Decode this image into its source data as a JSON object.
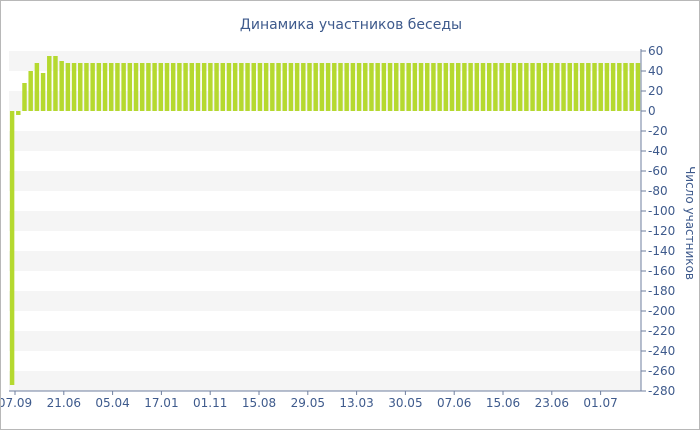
{
  "chart_data": {
    "type": "bar",
    "title": "Динамика участников беседы",
    "xlabel": "",
    "ylabel": "Число участников",
    "ylim": [
      -280,
      60
    ],
    "y_ticks": [
      60,
      40,
      20,
      0,
      -20,
      -40,
      -60,
      -80,
      -100,
      -120,
      -140,
      -160,
      -180,
      -200,
      -220,
      -240,
      -260,
      -280
    ],
    "y_axis_position": "right",
    "grid": "alternating horizontal bands",
    "x_tick_labels": [
      "07.09",
      "21.06",
      "05.04",
      "17.01",
      "01.11",
      "15.08",
      "29.05",
      "13.03",
      "30.05",
      "07.06",
      "15.06",
      "23.06",
      "01.07"
    ],
    "values": [
      -274,
      -4,
      28,
      40,
      48,
      38,
      55,
      55,
      50,
      48,
      48,
      48,
      48,
      48,
      48,
      48,
      48,
      48,
      48,
      48,
      48,
      48,
      48,
      48,
      48,
      48,
      48,
      48,
      48,
      48,
      48,
      48,
      48,
      48,
      48,
      48,
      48,
      48,
      48,
      48,
      48,
      48,
      48,
      48,
      48,
      48,
      48,
      48,
      48,
      48,
      48,
      48,
      48,
      48,
      48,
      48,
      48,
      48,
      48,
      48,
      48,
      48,
      48,
      48,
      48,
      48,
      48,
      48,
      48,
      48,
      48,
      48,
      48,
      48,
      48,
      48,
      48,
      48,
      48,
      48,
      48,
      48,
      48,
      48,
      48,
      48,
      48,
      48,
      48,
      48,
      48,
      48,
      48,
      48,
      48,
      48,
      48,
      48,
      48,
      48,
      48,
      48
    ],
    "colors": {
      "bar": "#b5d92f",
      "text": "#3e5a8c",
      "band": "#f5f5f5",
      "axis": "#6f7f9f"
    }
  }
}
